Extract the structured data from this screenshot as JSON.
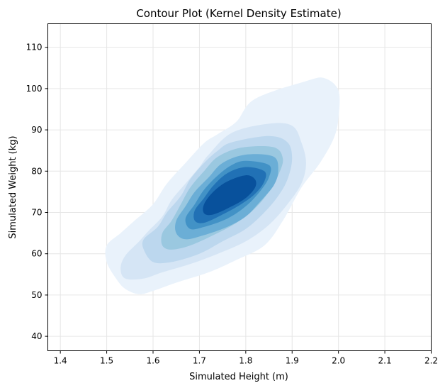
{
  "chart_data": {
    "type": "contour",
    "title": "Contour Plot (Kernel Density Estimate)",
    "xlabel": "Simulated Height (m)",
    "ylabel": "Simulated Weight (kg)",
    "xlim": [
      1.373,
      2.2
    ],
    "ylim": [
      36.5,
      115.7
    ],
    "xticks": [
      1.4,
      1.5,
      1.6,
      1.7,
      1.8,
      1.9,
      2.0,
      2.1,
      2.2
    ],
    "yticks": [
      40,
      50,
      60,
      70,
      80,
      90,
      100,
      110
    ],
    "grid": true,
    "colormap": "Blues",
    "fill_colors": [
      "#e9f2fb",
      "#d5e5f5",
      "#bcd7ee",
      "#9ac8e0",
      "#6baed6",
      "#4292c6",
      "#2171b5",
      "#08519c",
      "#0b4a8f"
    ],
    "contour_levels": [
      {
        "level": 1,
        "points": [
          [
            1.82,
            97.5
          ],
          [
            1.93,
            101.8
          ],
          [
            1.97,
            102.5
          ],
          [
            2.0,
            99.5
          ],
          [
            2.0,
            93
          ],
          [
            1.99,
            88
          ],
          [
            1.96,
            82
          ],
          [
            1.92,
            76
          ],
          [
            1.88,
            68
          ],
          [
            1.84,
            62
          ],
          [
            1.78,
            58.5
          ],
          [
            1.72,
            55.5
          ],
          [
            1.65,
            53
          ],
          [
            1.6,
            51
          ],
          [
            1.57,
            50.2
          ],
          [
            1.54,
            51.5
          ],
          [
            1.52,
            54
          ],
          [
            1.5,
            58
          ],
          [
            1.5,
            62
          ],
          [
            1.53,
            65
          ],
          [
            1.56,
            68
          ],
          [
            1.6,
            72
          ],
          [
            1.63,
            77
          ],
          [
            1.67,
            82
          ],
          [
            1.71,
            86.8
          ],
          [
            1.74,
            89
          ],
          [
            1.78,
            92
          ]
        ]
      },
      {
        "level": 2,
        "points": [
          [
            1.77,
            89.3
          ],
          [
            1.85,
            91.5
          ],
          [
            1.9,
            91
          ],
          [
            1.92,
            87
          ],
          [
            1.93,
            82
          ],
          [
            1.92,
            77
          ],
          [
            1.89,
            72
          ],
          [
            1.85,
            67
          ],
          [
            1.8,
            63
          ],
          [
            1.74,
            60
          ],
          [
            1.68,
            57.5
          ],
          [
            1.62,
            55.5
          ],
          [
            1.58,
            54
          ],
          [
            1.54,
            54
          ],
          [
            1.53,
            56.5
          ],
          [
            1.54,
            59.5
          ],
          [
            1.57,
            63
          ],
          [
            1.59,
            65.5
          ],
          [
            1.62,
            69
          ],
          [
            1.64,
            73
          ],
          [
            1.67,
            77
          ],
          [
            1.7,
            81
          ],
          [
            1.72,
            84
          ]
        ]
      },
      {
        "level": 3,
        "points": [
          [
            1.77,
            87
          ],
          [
            1.85,
            88.5
          ],
          [
            1.89,
            87
          ],
          [
            1.9,
            83
          ],
          [
            1.89,
            78
          ],
          [
            1.87,
            74
          ],
          [
            1.84,
            70
          ],
          [
            1.8,
            66
          ],
          [
            1.75,
            63
          ],
          [
            1.7,
            60
          ],
          [
            1.64,
            58
          ],
          [
            1.6,
            58
          ],
          [
            1.58,
            61
          ],
          [
            1.58,
            63.5
          ],
          [
            1.61,
            66.5
          ],
          [
            1.63,
            70
          ],
          [
            1.66,
            74
          ],
          [
            1.68,
            78
          ],
          [
            1.71,
            82
          ],
          [
            1.74,
            85
          ]
        ]
      },
      {
        "level": 4,
        "points": [
          [
            1.79,
            85.7
          ],
          [
            1.86,
            85.8
          ],
          [
            1.88,
            83
          ],
          [
            1.87,
            79
          ],
          [
            1.85,
            75
          ],
          [
            1.82,
            71
          ],
          [
            1.78,
            67.5
          ],
          [
            1.73,
            64.5
          ],
          [
            1.68,
            62
          ],
          [
            1.64,
            61
          ],
          [
            1.62,
            62
          ],
          [
            1.62,
            65
          ],
          [
            1.64,
            68
          ],
          [
            1.66,
            72
          ],
          [
            1.68,
            76
          ],
          [
            1.71,
            80
          ],
          [
            1.74,
            83.5
          ]
        ]
      },
      {
        "level": 5,
        "points": [
          [
            1.8,
            84
          ],
          [
            1.86,
            83.5
          ],
          [
            1.87,
            80
          ],
          [
            1.86,
            76.5
          ],
          [
            1.83,
            72.5
          ],
          [
            1.8,
            69
          ],
          [
            1.76,
            66.5
          ],
          [
            1.71,
            64.5
          ],
          [
            1.67,
            63.5
          ],
          [
            1.65,
            65
          ],
          [
            1.65,
            68
          ],
          [
            1.67,
            71.5
          ],
          [
            1.69,
            75
          ],
          [
            1.72,
            78.5
          ],
          [
            1.75,
            82
          ]
        ]
      },
      {
        "level": 6,
        "points": [
          [
            1.8,
            82.5
          ],
          [
            1.85,
            81.5
          ],
          [
            1.85,
            78.5
          ],
          [
            1.83,
            75
          ],
          [
            1.8,
            71.5
          ],
          [
            1.76,
            68.5
          ],
          [
            1.71,
            66.5
          ],
          [
            1.68,
            66
          ],
          [
            1.67,
            68.5
          ],
          [
            1.69,
            72
          ],
          [
            1.71,
            75.5
          ],
          [
            1.74,
            79
          ],
          [
            1.77,
            81.5
          ]
        ]
      },
      {
        "level": 7,
        "points": [
          [
            1.8,
            81
          ],
          [
            1.84,
            80
          ],
          [
            1.84,
            77.5
          ],
          [
            1.82,
            74.5
          ],
          [
            1.79,
            72
          ],
          [
            1.75,
            69.5
          ],
          [
            1.71,
            67.5
          ],
          [
            1.69,
            68
          ],
          [
            1.69,
            70.5
          ],
          [
            1.71,
            73.5
          ],
          [
            1.73,
            76.5
          ],
          [
            1.76,
            79.5
          ]
        ]
      },
      {
        "level": 8,
        "points": [
          [
            1.8,
            79
          ],
          [
            1.82,
            78
          ],
          [
            1.82,
            76
          ],
          [
            1.8,
            73.5
          ],
          [
            1.77,
            71.5
          ],
          [
            1.73,
            69.5
          ],
          [
            1.71,
            69.8
          ],
          [
            1.71,
            72
          ],
          [
            1.73,
            75
          ],
          [
            1.76,
            77.5
          ]
        ]
      }
    ]
  }
}
